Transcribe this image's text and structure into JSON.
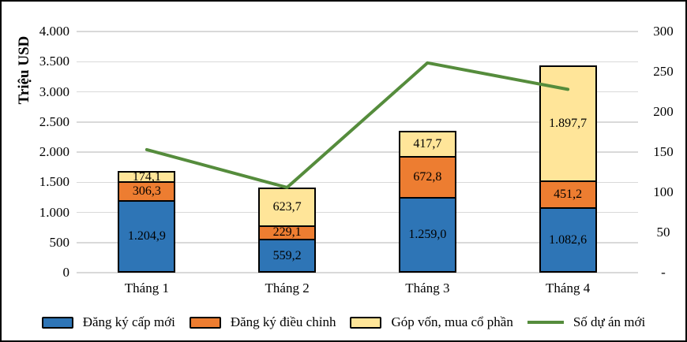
{
  "chart_data": {
    "type": "bar",
    "subtype": "stacked-bar-with-line",
    "title": "",
    "categories": [
      "Tháng 1",
      "Tháng 2",
      "Tháng 3",
      "Tháng 4"
    ],
    "series": [
      {
        "name": "Đăng ký cấp mới",
        "type": "bar",
        "color": "#2E75B6",
        "values": [
          1204.9,
          559.2,
          1259.0,
          1082.6
        ],
        "labels": [
          "1.204,9",
          "559,2",
          "1.259,0",
          "1.082,6"
        ]
      },
      {
        "name": "Đăng ký điều chỉnh",
        "type": "bar",
        "color": "#ED7D31",
        "values": [
          306.3,
          229.1,
          672.8,
          451.2
        ],
        "labels": [
          "306,3",
          "229,1",
          "672,8",
          "451,2"
        ]
      },
      {
        "name": "Góp vốn, mua cổ phần",
        "type": "bar",
        "color": "#FFE599",
        "values": [
          174.1,
          623.7,
          417.7,
          1897.7
        ],
        "labels": [
          "174,1",
          "623,7",
          "417,7",
          "1.897,7"
        ]
      },
      {
        "name": "Số dự án mới",
        "type": "line",
        "axis": "right",
        "color": "#558C3C",
        "values": [
          153,
          106,
          261,
          228
        ]
      }
    ],
    "left_axis": {
      "label": "Triệu USD",
      "min": 0,
      "max": 4000,
      "step": 500,
      "ticks": [
        "4.000",
        "3.500",
        "3.000",
        "2.500",
        "2.000",
        "1.500",
        "1.000",
        "500",
        "0"
      ]
    },
    "right_axis": {
      "label": "",
      "min": 0,
      "max": 300,
      "step": 50,
      "ticks": [
        "300",
        "250",
        "200",
        "150",
        "100",
        "50",
        "-"
      ]
    },
    "grid": true,
    "grid_color": "#D9D9D9",
    "legend_position": "bottom"
  }
}
